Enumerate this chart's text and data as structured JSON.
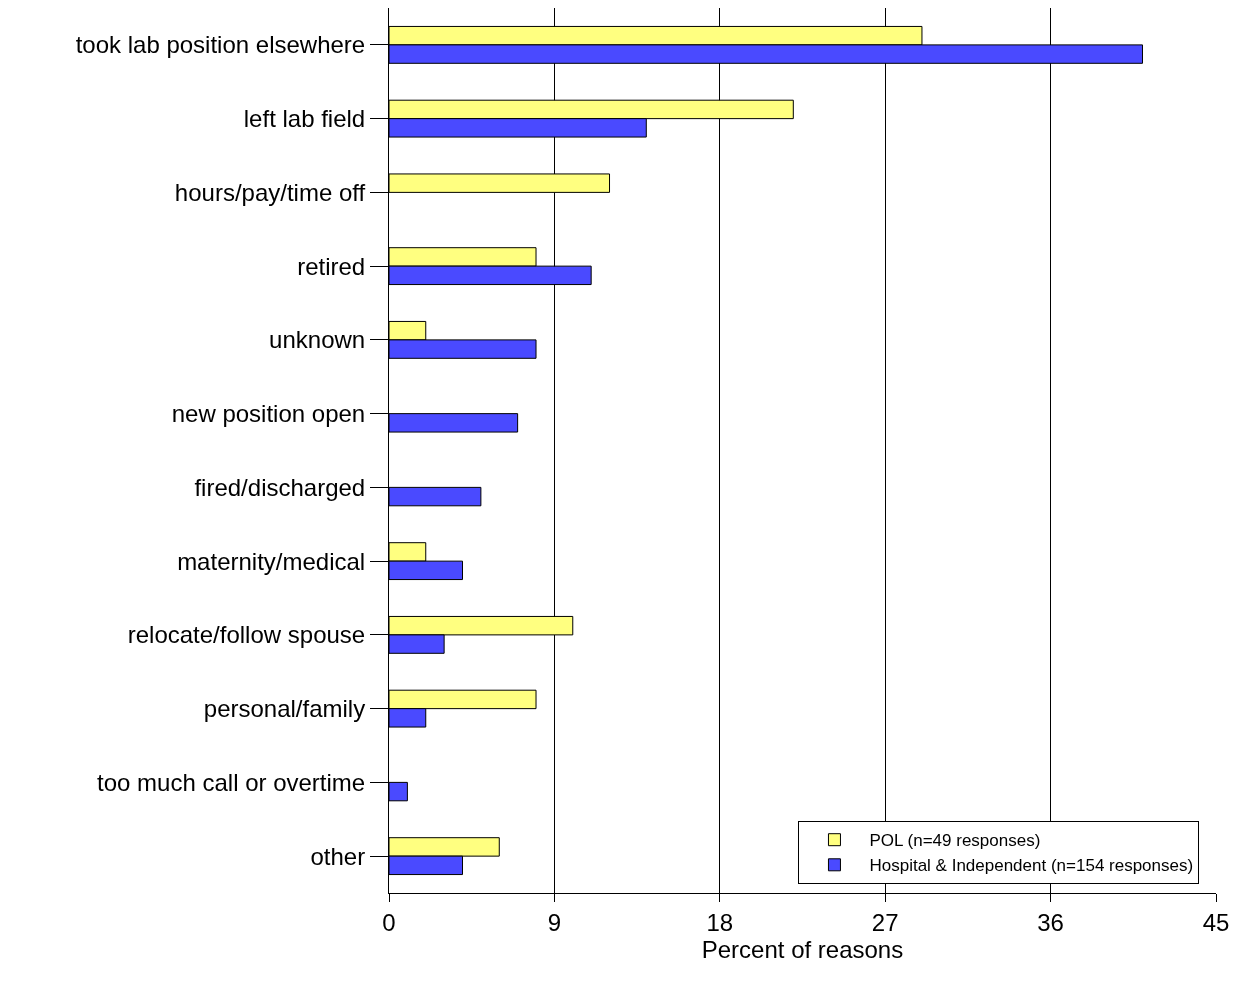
{
  "chart_data": {
    "type": "bar",
    "orientation": "horizontal",
    "xlabel": "Percent of reasons",
    "categories": [
      "took lab position elsewhere",
      "left lab field",
      "hours/pay/time off",
      "retired",
      "unknown",
      "new position open",
      "fired/discharged",
      "maternity/medical",
      "relocate/follow spouse",
      "personal/family",
      "too much call or overtime",
      "other"
    ],
    "series": [
      {
        "name": "POL (n=49 responses)",
        "color": "#ffff80",
        "values": [
          29,
          22,
          12,
          8,
          2,
          null,
          null,
          2,
          10,
          8,
          null,
          6
        ]
      },
      {
        "name": "Hospital & Independent (n=154 responses)",
        "color": "#4a4aff",
        "values": [
          41,
          14,
          null,
          11,
          8,
          7,
          5,
          4,
          3,
          2,
          1,
          4
        ]
      }
    ],
    "xlim": [
      0,
      45
    ],
    "xticks": [
      0,
      9,
      18,
      27,
      36,
      45
    ],
    "grid": "x",
    "legend": "bottom right"
  }
}
